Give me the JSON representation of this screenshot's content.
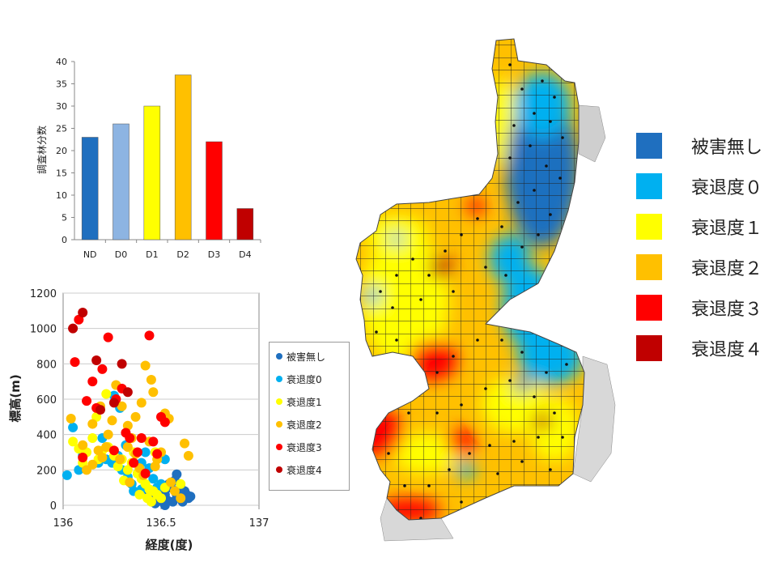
{
  "chart_data": [
    {
      "type": "bar",
      "ylabel": "調査林分数",
      "ylim": [
        0,
        40
      ],
      "yticks": [
        0,
        5,
        10,
        15,
        20,
        25,
        30,
        35,
        40
      ],
      "categories": [
        "ND",
        "D0",
        "D1",
        "D2",
        "D3",
        "D4"
      ],
      "values": [
        23,
        26,
        30,
        37,
        22,
        7
      ],
      "colors": [
        "#1f6fbf",
        "#8db4e2",
        "#ffff00",
        "#ffc000",
        "#ff0000",
        "#c00000"
      ]
    },
    {
      "type": "scatter",
      "xlabel": "経度(度)",
      "ylabel": "標高(m)",
      "xlim": [
        136,
        137
      ],
      "ylim": [
        0,
        1200
      ],
      "xticks": [
        136,
        136.5,
        137
      ],
      "yticks": [
        0,
        200,
        400,
        600,
        800,
        1000,
        1200
      ],
      "grid": true,
      "legend": "right",
      "series": [
        {
          "name": "被害無し",
          "color": "#1f6fbf",
          "points": [
            [
              136.48,
              20
            ],
            [
              136.5,
              40
            ],
            [
              136.52,
              60
            ],
            [
              136.55,
              100
            ],
            [
              136.58,
              175
            ],
            [
              136.6,
              40
            ],
            [
              136.62,
              80
            ],
            [
              136.63,
              60
            ],
            [
              136.65,
              50
            ],
            [
              136.56,
              20
            ],
            [
              136.53,
              30
            ],
            [
              136.5,
              80
            ],
            [
              136.47,
              10
            ],
            [
              136.54,
              120
            ],
            [
              136.58,
              60
            ],
            [
              136.6,
              100
            ],
            [
              136.64,
              40
            ],
            [
              136.52,
              0
            ],
            [
              136.49,
              60
            ],
            [
              136.57,
              140
            ],
            [
              136.61,
              20
            ],
            [
              136.45,
              40
            ],
            [
              136.44,
              60
            ]
          ]
        },
        {
          "name": "衰退度0",
          "color": "#00b0f0",
          "points": [
            [
              136.02,
              170
            ],
            [
              136.05,
              440
            ],
            [
              136.08,
              200
            ],
            [
              136.1,
              280
            ],
            [
              136.18,
              240
            ],
            [
              136.2,
              380
            ],
            [
              136.22,
              260
            ],
            [
              136.25,
              240
            ],
            [
              136.28,
              280
            ],
            [
              136.3,
              200
            ],
            [
              136.33,
              160
            ],
            [
              136.35,
              120
            ],
            [
              136.38,
              180
            ],
            [
              136.4,
              240
            ],
            [
              136.42,
              300
            ],
            [
              136.44,
              210
            ],
            [
              136.46,
              150
            ],
            [
              136.48,
              100
            ],
            [
              136.5,
              120
            ],
            [
              136.36,
              80
            ],
            [
              136.4,
              90
            ],
            [
              136.32,
              340
            ],
            [
              136.52,
              260
            ],
            [
              136.42,
              110
            ],
            [
              136.29,
              550
            ],
            [
              136.26,
              620
            ]
          ]
        },
        {
          "name": "衰退度1",
          "color": "#ffff00",
          "points": [
            [
              136.05,
              360
            ],
            [
              136.08,
              320
            ],
            [
              136.1,
              240
            ],
            [
              136.12,
              300
            ],
            [
              136.15,
              380
            ],
            [
              136.18,
              260
            ],
            [
              136.2,
              310
            ],
            [
              136.23,
              330
            ],
            [
              136.26,
              280
            ],
            [
              136.3,
              260
            ],
            [
              136.33,
              200
            ],
            [
              136.35,
              240
            ],
            [
              136.38,
              180
            ],
            [
              136.4,
              150
            ],
            [
              136.42,
              120
            ],
            [
              136.44,
              90
            ],
            [
              136.46,
              80
            ],
            [
              136.48,
              60
            ],
            [
              136.5,
              40
            ],
            [
              136.43,
              40
            ],
            [
              136.36,
              300
            ],
            [
              136.28,
              220
            ],
            [
              136.17,
              500
            ],
            [
              136.22,
              630
            ],
            [
              136.47,
              300
            ],
            [
              136.52,
              100
            ],
            [
              136.6,
              120
            ],
            [
              136.31,
              140
            ],
            [
              136.39,
              60
            ],
            [
              136.45,
              20
            ]
          ]
        },
        {
          "name": "衰退度2",
          "color": "#ffc000",
          "points": [
            [
              136.04,
              490
            ],
            [
              136.1,
              340
            ],
            [
              136.12,
              200
            ],
            [
              136.15,
              230
            ],
            [
              136.18,
              310
            ],
            [
              136.2,
              270
            ],
            [
              136.22,
              330
            ],
            [
              136.25,
              480
            ],
            [
              136.27,
              680
            ],
            [
              136.3,
              560
            ],
            [
              136.33,
              450
            ],
            [
              136.35,
              380
            ],
            [
              136.37,
              290
            ],
            [
              136.4,
              580
            ],
            [
              136.42,
              790
            ],
            [
              136.44,
              360
            ],
            [
              136.46,
              640
            ],
            [
              136.48,
              260
            ],
            [
              136.5,
              300
            ],
            [
              136.52,
              520
            ],
            [
              136.54,
              490
            ],
            [
              136.55,
              130
            ],
            [
              136.57,
              80
            ],
            [
              136.6,
              40
            ],
            [
              136.62,
              350
            ],
            [
              136.64,
              280
            ],
            [
              136.41,
              170
            ],
            [
              136.39,
              210
            ],
            [
              136.34,
              130
            ],
            [
              136.29,
              260
            ],
            [
              136.23,
              400
            ],
            [
              136.19,
              560
            ],
            [
              136.15,
              460
            ],
            [
              136.45,
              710
            ],
            [
              136.37,
              500
            ],
            [
              136.47,
              220
            ],
            [
              136.33,
              330
            ]
          ]
        },
        {
          "name": "衰退度3",
          "color": "#ff0000",
          "points": [
            [
              136.06,
              810
            ],
            [
              136.08,
              1050
            ],
            [
              136.12,
              590
            ],
            [
              136.15,
              700
            ],
            [
              136.17,
              550
            ],
            [
              136.2,
              770
            ],
            [
              136.23,
              950
            ],
            [
              136.27,
              600
            ],
            [
              136.3,
              660
            ],
            [
              136.34,
              380
            ],
            [
              136.36,
              240
            ],
            [
              136.38,
              300
            ],
            [
              136.4,
              380
            ],
            [
              136.44,
              960
            ],
            [
              136.46,
              360
            ],
            [
              136.5,
              500
            ],
            [
              136.52,
              470
            ],
            [
              136.48,
              290
            ],
            [
              136.26,
              310
            ],
            [
              136.32,
              410
            ],
            [
              136.1,
              270
            ],
            [
              136.42,
              180
            ]
          ]
        },
        {
          "name": "衰退度4",
          "color": "#c00000",
          "points": [
            [
              136.05,
              1000
            ],
            [
              136.1,
              1090
            ],
            [
              136.17,
              820
            ],
            [
              136.3,
              800
            ],
            [
              136.33,
              640
            ],
            [
              136.26,
              580
            ],
            [
              136.19,
              540
            ]
          ]
        }
      ]
    }
  ],
  "map": {
    "legend": [
      {
        "label": "被害無し",
        "color": "#1f6fbf"
      },
      {
        "label": "衰退度０",
        "color": "#00b0f0"
      },
      {
        "label": "衰退度１",
        "color": "#ffff00"
      },
      {
        "label": "衰退度２",
        "color": "#ffc000"
      },
      {
        "label": "衰退度３",
        "color": "#ff0000"
      },
      {
        "label": "衰退度４",
        "color": "#c00000"
      }
    ]
  }
}
